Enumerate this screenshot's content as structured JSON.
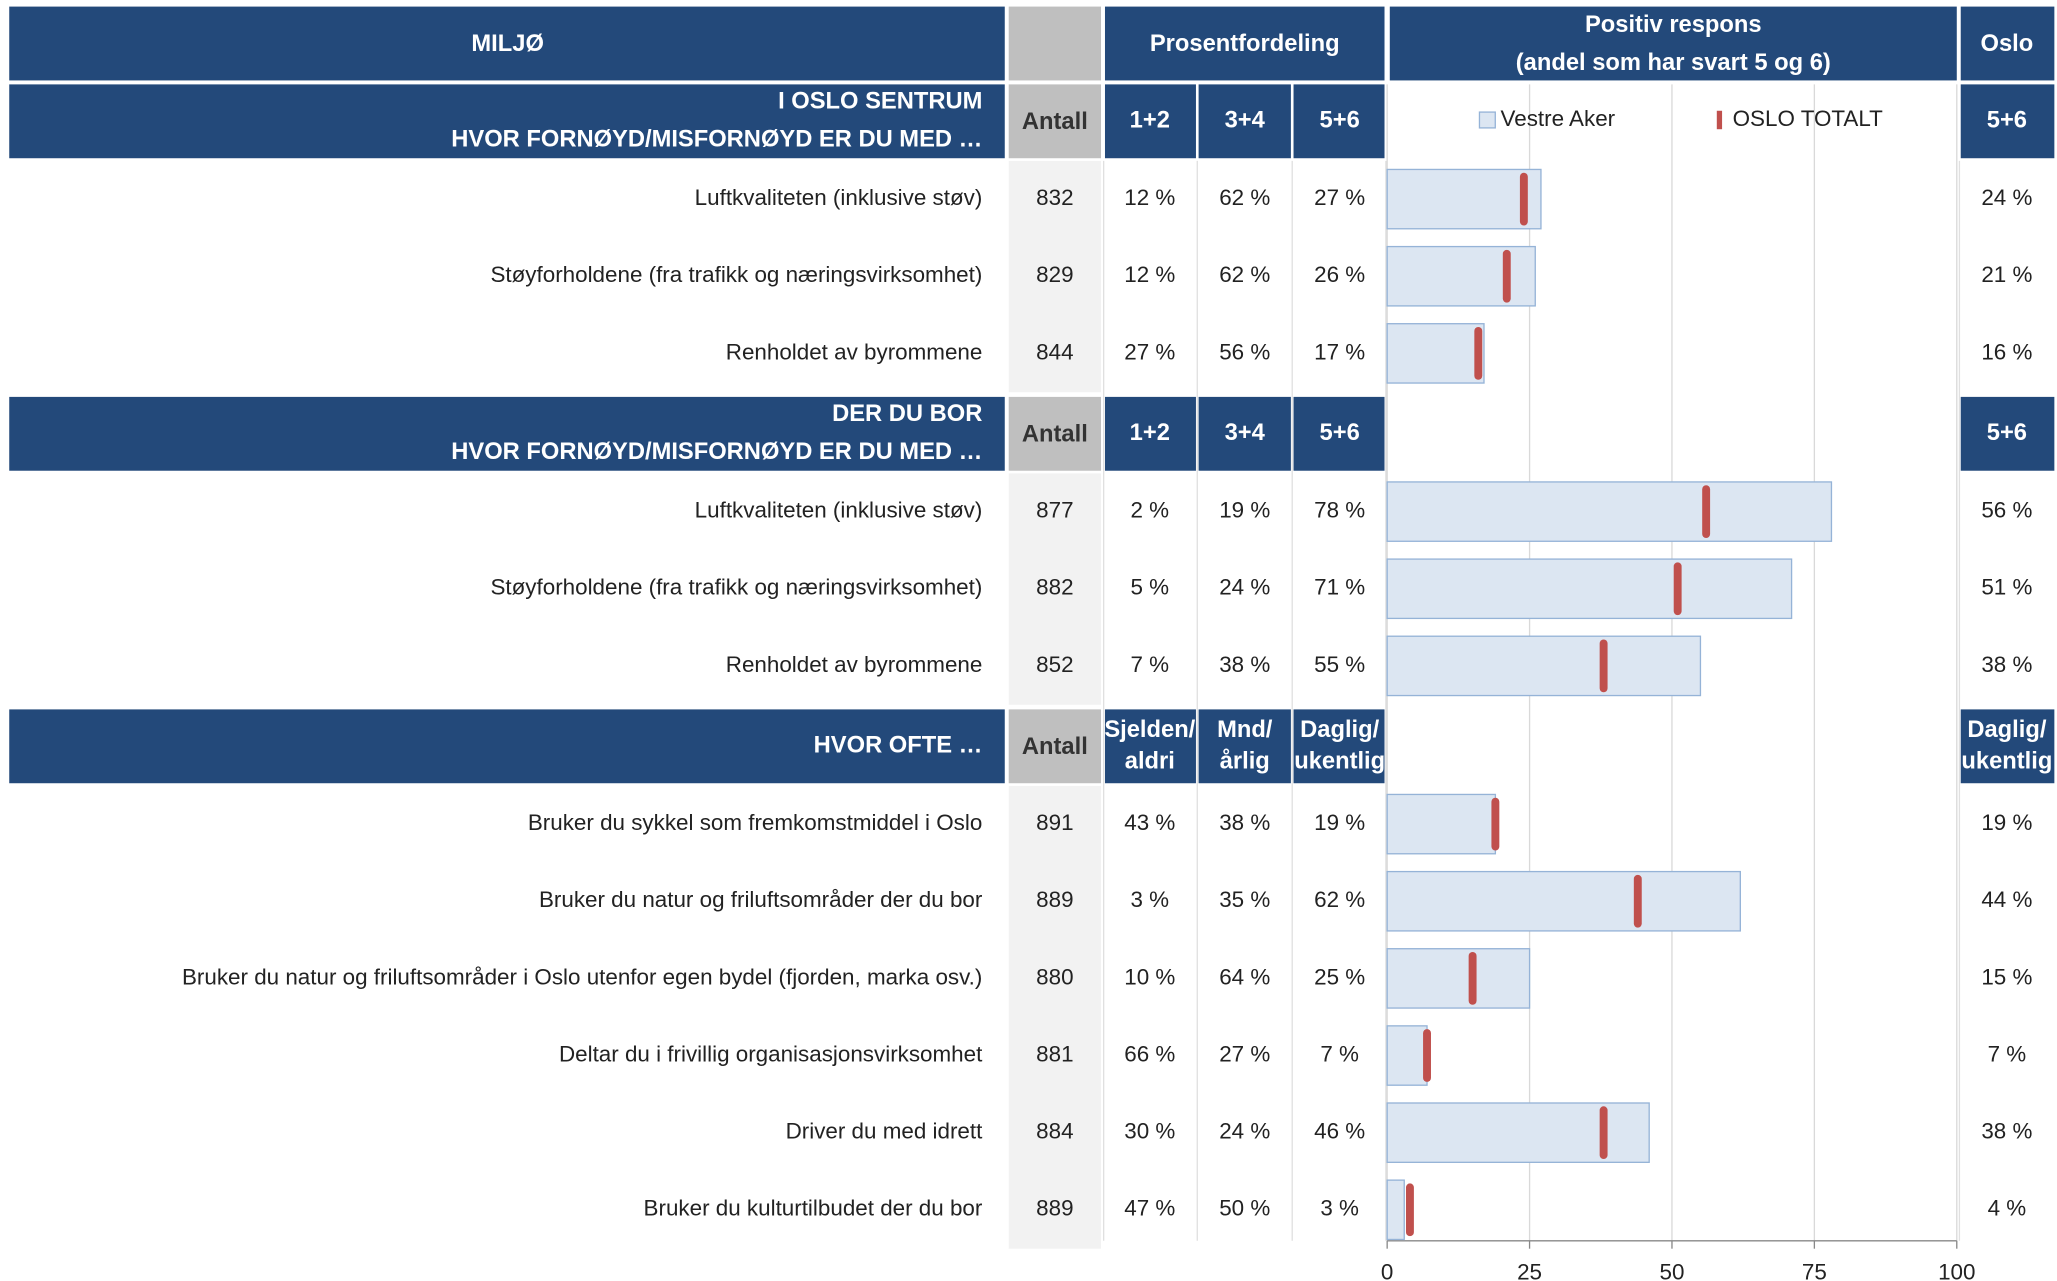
{
  "table": {
    "header": {
      "title": "MILJØ",
      "col_group": "Prosentfordeling",
      "chart_title": [
        "Positiv respons",
        "(andel som har svart 5 og 6)"
      ],
      "oslo": "Oslo"
    },
    "sections": [
      {
        "title": [
          "I OSLO SENTRUM",
          "HVOR FORNØYD/MISFORNØYD ER DU MED …"
        ],
        "antall": "Antall",
        "columns": [
          [
            "1+2"
          ],
          [
            "3+4"
          ],
          [
            "5+6"
          ]
        ],
        "oslo_col": [
          "5+6"
        ],
        "rows": [
          {
            "antall": 832,
            "c1": "12 %",
            "c2": "62 %"
          },
          {
            "antall": 829,
            "c1": "12 %",
            "c2": "62 %"
          },
          {
            "antall": 844,
            "c1": "27 %",
            "c2": "56 %"
          }
        ]
      },
      {
        "title": [
          "DER DU BOR",
          "HVOR FORNØYD/MISFORNØYD ER DU MED …"
        ],
        "antall": "Antall",
        "columns": [
          [
            "1+2"
          ],
          [
            "3+4"
          ],
          [
            "5+6"
          ]
        ],
        "oslo_col": [
          "5+6"
        ],
        "rows": [
          {
            "antall": 877,
            "c1": "2 %",
            "c2": "19 %"
          },
          {
            "antall": 882,
            "c1": "5 %",
            "c2": "24 %"
          },
          {
            "antall": 852,
            "c1": "7 %",
            "c2": "38 %"
          }
        ]
      },
      {
        "title": [
          "HVOR OFTE …"
        ],
        "antall": "Antall",
        "columns": [
          [
            "Sjelden/",
            "aldri"
          ],
          [
            "Mnd/",
            "årlig"
          ],
          [
            "Daglig/",
            "ukentlig"
          ]
        ],
        "oslo_col": [
          "Daglig/",
          "ukentlig"
        ],
        "rows": [
          {
            "antall": 891,
            "c1": "43 %",
            "c2": "38 %"
          },
          {
            "antall": 889,
            "c1": "3 %",
            "c2": "35 %"
          },
          {
            "antall": 880,
            "c1": "10 %",
            "c2": "64 %"
          },
          {
            "antall": 881,
            "c1": "66 %",
            "c2": "27 %"
          },
          {
            "antall": 884,
            "c1": "30 %",
            "c2": "24 %"
          },
          {
            "antall": 889,
            "c1": "47 %",
            "c2": "50 %"
          }
        ]
      }
    ]
  },
  "chart_data": {
    "type": "bar",
    "orientation": "horizontal",
    "categories": [
      "Luftkvaliteten (inklusive støv)",
      "Støyforholdene (fra trafikk og næringsvirksomhet)",
      "Renholdet av byrommene",
      "Luftkvaliteten (inklusive støv)",
      "Støyforholdene (fra trafikk og næringsvirksomhet)",
      "Renholdet av byrommene",
      "Bruker du sykkel som fremkomstmiddel i Oslo",
      "Bruker du natur og friluftsområder der du bor",
      "Bruker du natur og friluftsområder i Oslo utenfor egen bydel (fjorden, marka osv.)",
      "Deltar du i frivillig organisasjonsvirksomhet",
      "Driver du med idrett",
      "Bruker du kulturtilbudet der du bor"
    ],
    "series": [
      {
        "name": "Vestre Aker",
        "color": "#dce6f2",
        "values": [
          27,
          26,
          17,
          78,
          71,
          55,
          19,
          62,
          25,
          7,
          46,
          3
        ],
        "value_labels": [
          "27 %",
          "26 %",
          "17 %",
          "78 %",
          "71 %",
          "55 %",
          "19 %",
          "62 %",
          "25 %",
          "7 %",
          "46 %",
          "3 %"
        ]
      },
      {
        "name": "OSLO TOTALT",
        "color": "#c0504d",
        "values": [
          24,
          21,
          16,
          56,
          51,
          38,
          19,
          44,
          15,
          7,
          38,
          4
        ],
        "value_labels": [
          "24 %",
          "21 %",
          "16 %",
          "56 %",
          "51 %",
          "38 %",
          "19 %",
          "44 %",
          "15 %",
          "7 %",
          "38 %",
          "4 %"
        ]
      }
    ],
    "xlim": [
      0,
      100
    ],
    "xticks": [
      0,
      25,
      50,
      75,
      100
    ],
    "grid": true
  }
}
